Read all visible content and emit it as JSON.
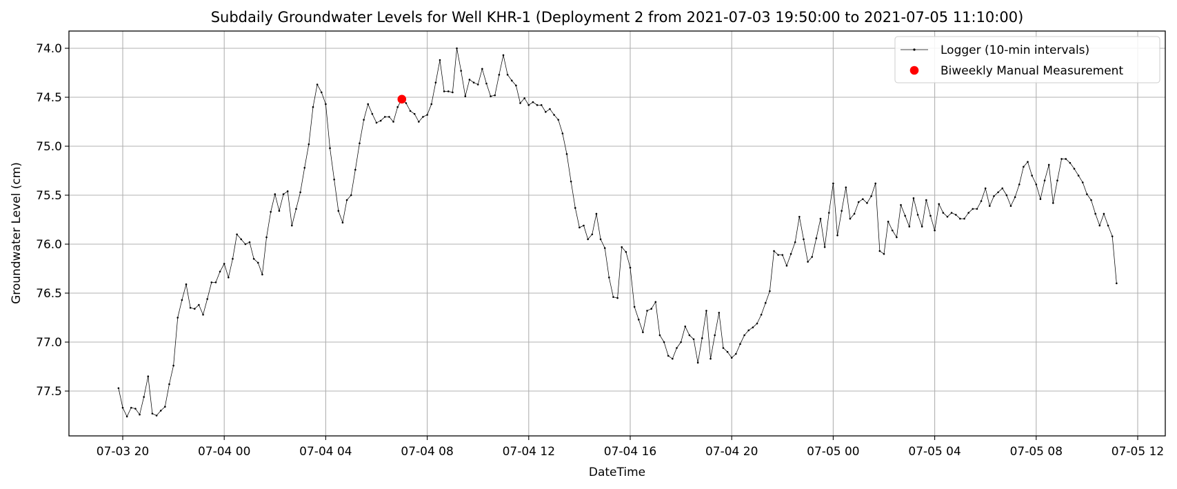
{
  "chart_data": {
    "type": "line",
    "title": "Subdaily Groundwater Levels for Well KHR-1 (Deployment 2 from 2021-07-03 19:50:00 to 2021-07-05 11:10:00)",
    "xlabel": "DateTime",
    "ylabel": "Groundwater Level (cm)",
    "x_start": "2021-07-03 19:50:00",
    "x_end": "2021-07-05 11:10:00",
    "sample_interval_minutes": 10,
    "x_ticks": [
      "07-03 20",
      "07-04 00",
      "07-04 04",
      "07-04 08",
      "07-04 12",
      "07-04 16",
      "07-04 20",
      "07-05 00",
      "07-05 04",
      "07-05 08",
      "07-05 12"
    ],
    "y_ticks": [
      "74.0",
      "74.5",
      "75.0",
      "75.5",
      "76.0",
      "76.5",
      "77.0",
      "77.5"
    ],
    "y_ticks_values": [
      74.0,
      74.5,
      75.0,
      75.5,
      76.0,
      76.5,
      77.0,
      77.5
    ],
    "ylim": [
      77.68,
      73.82
    ],
    "y_inverted": true,
    "grid": true,
    "legend_position": "top-right",
    "colors": {
      "logger": "#000000",
      "manual": "#ff0000",
      "grid": "#b0b0b0"
    },
    "series": [
      {
        "name": "Logger (10-min intervals)",
        "style": "line-with-small-markers",
        "x_start": "2021-07-03 19:50:00",
        "x_step_minutes": 10,
        "values": [
          77.47,
          77.67,
          77.76,
          77.67,
          77.68,
          77.74,
          77.56,
          77.35,
          77.73,
          77.75,
          77.7,
          77.66,
          77.43,
          77.24,
          76.75,
          76.57,
          76.41,
          76.65,
          76.66,
          76.62,
          76.72,
          76.56,
          76.39,
          76.39,
          76.28,
          76.2,
          76.34,
          76.15,
          75.9,
          75.95,
          76.0,
          75.98,
          76.15,
          76.19,
          76.31,
          75.93,
          75.67,
          75.49,
          75.66,
          75.49,
          75.46,
          75.81,
          75.64,
          75.47,
          75.22,
          74.98,
          74.6,
          74.37,
          74.45,
          74.57,
          75.02,
          75.34,
          75.66,
          75.78,
          75.55,
          75.5,
          75.24,
          74.97,
          74.73,
          74.57,
          74.67,
          74.76,
          74.74,
          74.7,
          74.7,
          74.75,
          74.6,
          74.52,
          74.56,
          74.64,
          74.67,
          74.75,
          74.7,
          74.68,
          74.57,
          74.35,
          74.12,
          74.44,
          74.44,
          74.45,
          74.0,
          74.23,
          74.49,
          74.32,
          74.35,
          74.37,
          74.21,
          74.36,
          74.49,
          74.48,
          74.27,
          74.07,
          74.27,
          74.33,
          74.38,
          74.56,
          74.51,
          74.58,
          74.55,
          74.58,
          74.58,
          74.65,
          74.62,
          74.68,
          74.73,
          74.87,
          75.08,
          75.36,
          75.63,
          75.83,
          75.81,
          75.95,
          75.9,
          75.69,
          75.95,
          76.04,
          76.34,
          76.54,
          76.55,
          76.03,
          76.08,
          76.24,
          76.64,
          76.77,
          76.9,
          76.68,
          76.66,
          76.59,
          76.93,
          77.0,
          77.14,
          77.17,
          77.06,
          77.0,
          76.84,
          76.93,
          76.97,
          77.21,
          76.96,
          76.68,
          77.17,
          76.93,
          76.7,
          77.06,
          77.1,
          77.16,
          77.12,
          77.02,
          76.93,
          76.88,
          76.85,
          76.81,
          76.72,
          76.6,
          76.48,
          76.07,
          76.11,
          76.11,
          76.22,
          76.1,
          75.98,
          75.72,
          75.95,
          76.18,
          76.13,
          75.94,
          75.74,
          76.03,
          75.68,
          75.38,
          75.91,
          75.66,
          75.42,
          75.74,
          75.69,
          75.57,
          75.54,
          75.58,
          75.51,
          75.38,
          76.07,
          76.1,
          75.77,
          75.86,
          75.93,
          75.6,
          75.71,
          75.82,
          75.53,
          75.7,
          75.82,
          75.55,
          75.71,
          75.86,
          75.59,
          75.68,
          75.72,
          75.68,
          75.7,
          75.74,
          75.74,
          75.68,
          75.64,
          75.64,
          75.56,
          75.43,
          75.61,
          75.51,
          75.47,
          75.43,
          75.5,
          75.61,
          75.52,
          75.39,
          75.21,
          75.16,
          75.3,
          75.39,
          75.54,
          75.35,
          75.19,
          75.58,
          75.35,
          75.13,
          75.13,
          75.17,
          75.23,
          75.3,
          75.37,
          75.49,
          75.55,
          75.69,
          75.81,
          75.69,
          75.81,
          75.92,
          76.4
        ]
      },
      {
        "name": "Biweekly Manual Measurement",
        "style": "scatter",
        "points": [
          {
            "x": "2021-07-04 07:00:00",
            "y": 74.52
          }
        ]
      }
    ]
  }
}
